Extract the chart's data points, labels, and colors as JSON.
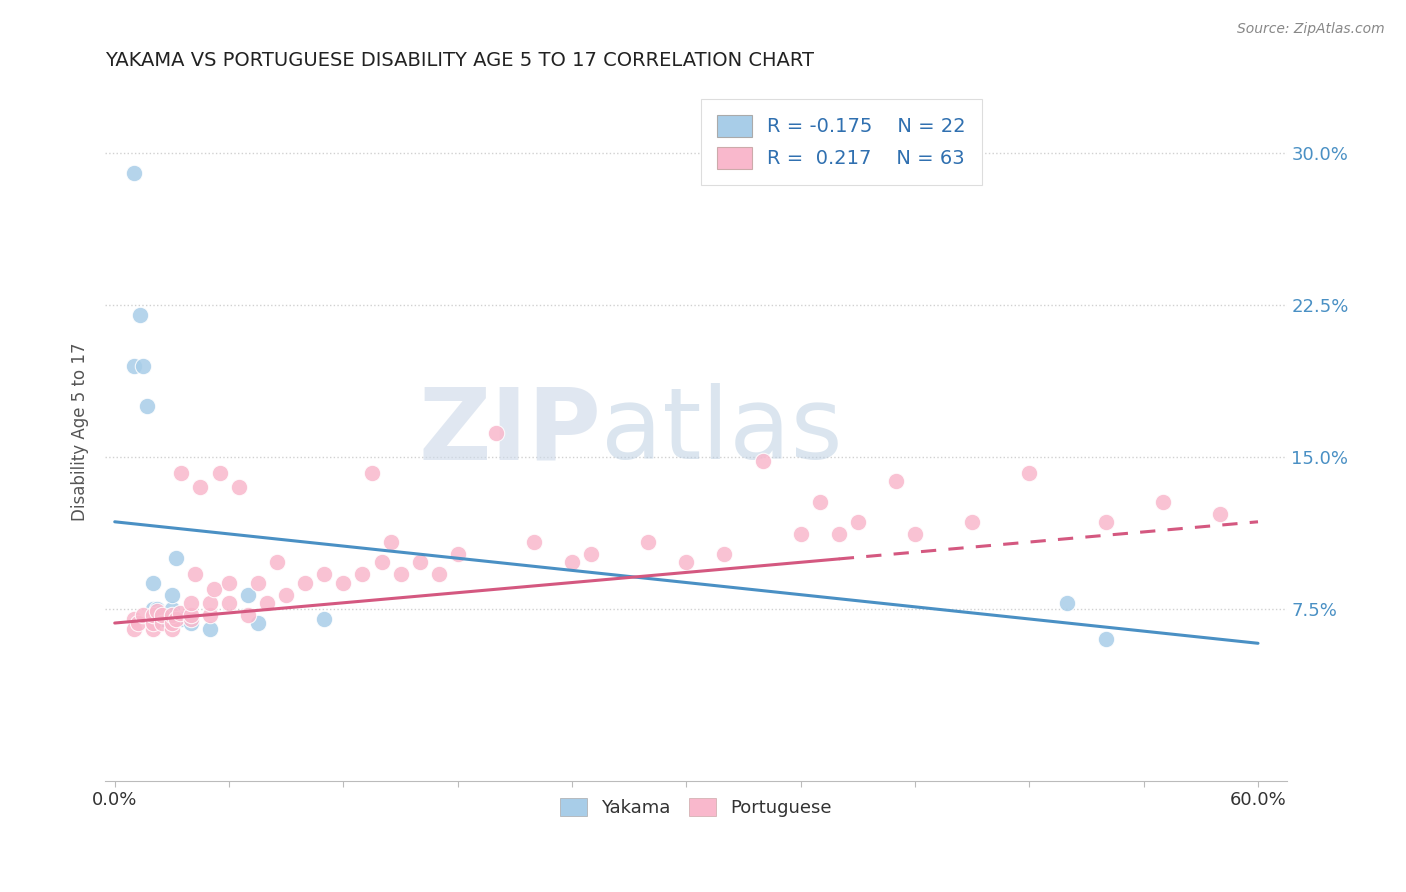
{
  "title": "YAKAMA VS PORTUGUESE DISABILITY AGE 5 TO 17 CORRELATION CHART",
  "source_text": "Source: ZipAtlas.com",
  "ylabel": "Disability Age 5 to 17",
  "xlim": [
    -0.005,
    0.615
  ],
  "ylim": [
    -0.01,
    0.335
  ],
  "yticks": [
    0.075,
    0.15,
    0.225,
    0.3
  ],
  "ytick_labels": [
    "7.5%",
    "15.0%",
    "22.5%",
    "30.0%"
  ],
  "xticks": [
    0.0,
    0.06,
    0.12,
    0.18,
    0.24,
    0.3,
    0.36,
    0.42,
    0.48,
    0.54,
    0.6
  ],
  "xtick_edge_labels": {
    "0": "0.0%",
    "10": "60.0%"
  },
  "legend_r_yakama": "-0.175",
  "legend_n_yakama": "22",
  "legend_r_portuguese": "0.217",
  "legend_n_portuguese": "63",
  "yakama_color": "#a8cde8",
  "portuguese_color": "#f9b8cc",
  "trend_yakama_color": "#4a90c4",
  "trend_portuguese_color": "#d45880",
  "watermark_zip": "ZIP",
  "watermark_atlas": "atlas",
  "yakama_x": [
    0.01,
    0.01,
    0.013,
    0.015,
    0.017,
    0.02,
    0.02,
    0.022,
    0.023,
    0.024,
    0.025,
    0.03,
    0.03,
    0.032,
    0.035,
    0.04,
    0.05,
    0.07,
    0.075,
    0.11,
    0.5,
    0.52
  ],
  "yakama_y": [
    0.29,
    0.195,
    0.22,
    0.195,
    0.175,
    0.088,
    0.075,
    0.075,
    0.07,
    0.073,
    0.07,
    0.075,
    0.082,
    0.1,
    0.07,
    0.068,
    0.065,
    0.082,
    0.068,
    0.07,
    0.078,
    0.06
  ],
  "portuguese_x": [
    0.01,
    0.01,
    0.012,
    0.015,
    0.02,
    0.02,
    0.02,
    0.022,
    0.025,
    0.025,
    0.03,
    0.03,
    0.03,
    0.032,
    0.034,
    0.035,
    0.04,
    0.04,
    0.04,
    0.042,
    0.045,
    0.05,
    0.05,
    0.052,
    0.055,
    0.06,
    0.06,
    0.065,
    0.07,
    0.075,
    0.08,
    0.085,
    0.09,
    0.1,
    0.11,
    0.12,
    0.13,
    0.135,
    0.14,
    0.145,
    0.15,
    0.16,
    0.17,
    0.18,
    0.2,
    0.22,
    0.24,
    0.25,
    0.28,
    0.3,
    0.32,
    0.34,
    0.36,
    0.37,
    0.38,
    0.39,
    0.41,
    0.42,
    0.45,
    0.48,
    0.52,
    0.55,
    0.58
  ],
  "portuguese_y": [
    0.07,
    0.065,
    0.068,
    0.072,
    0.065,
    0.068,
    0.072,
    0.074,
    0.068,
    0.072,
    0.065,
    0.068,
    0.072,
    0.07,
    0.073,
    0.142,
    0.07,
    0.072,
    0.078,
    0.092,
    0.135,
    0.072,
    0.078,
    0.085,
    0.142,
    0.078,
    0.088,
    0.135,
    0.072,
    0.088,
    0.078,
    0.098,
    0.082,
    0.088,
    0.092,
    0.088,
    0.092,
    0.142,
    0.098,
    0.108,
    0.092,
    0.098,
    0.092,
    0.102,
    0.162,
    0.108,
    0.098,
    0.102,
    0.108,
    0.098,
    0.102,
    0.148,
    0.112,
    0.128,
    0.112,
    0.118,
    0.138,
    0.112,
    0.118,
    0.142,
    0.118,
    0.128,
    0.122
  ],
  "trend_yakama_x0": 0.0,
  "trend_yakama_x1": 0.6,
  "trend_yakama_y0": 0.118,
  "trend_yakama_y1": 0.058,
  "trend_portuguese_x0": 0.0,
  "trend_portuguese_x1": 0.6,
  "trend_portuguese_y0": 0.068,
  "trend_portuguese_y1": 0.118,
  "trend_portuguese_dash_start": 0.38
}
